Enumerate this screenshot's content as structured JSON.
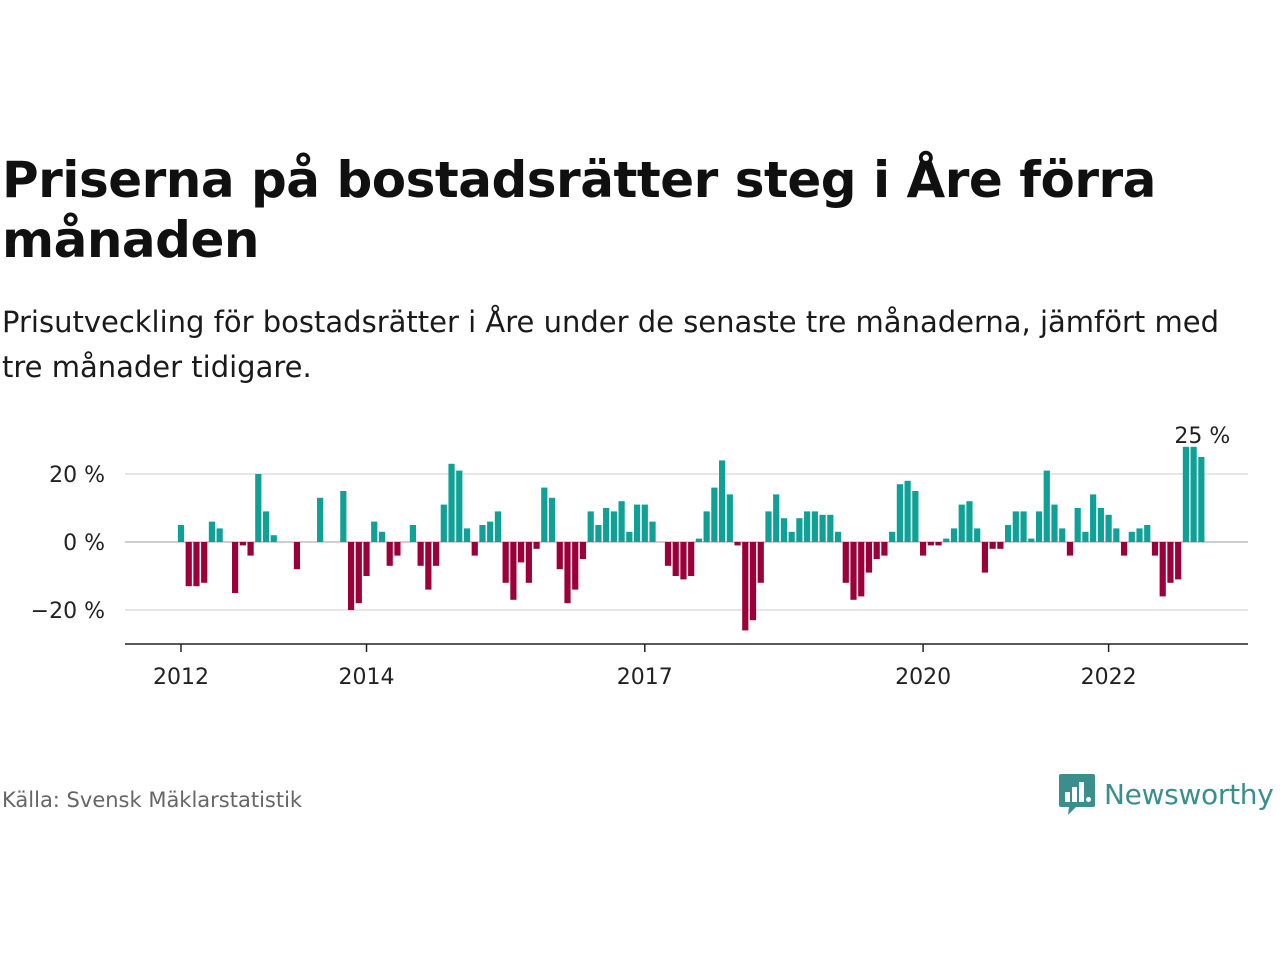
{
  "title": "Priserna på bostadsrätter steg i Åre förra månaden",
  "subtitle": "Prisutveckling för bostadsrätter i Åre under de senaste tre månaderna, jämfört med tre månader tidigare.",
  "source": "Källa: Svensk Mäklarstatistik",
  "brand": {
    "name": "Newsworthy",
    "icon": "newsworthy-logo-icon",
    "color": "#3a8f8c"
  },
  "chart_data": {
    "type": "bar",
    "x_start": "2012-01",
    "x_interval": "month",
    "x_tick_labels": [
      "2012",
      "2014",
      "2017",
      "2020",
      "2022"
    ],
    "y_tick_labels": [
      "20 %",
      "0 %",
      "−20 %"
    ],
    "y_ticks": [
      20,
      0,
      -20
    ],
    "ylim": [
      -30,
      30
    ],
    "grid": true,
    "colors": {
      "positive": "#0fa195",
      "negative": "#9b0039"
    },
    "annotation": {
      "text": "25 %"
    },
    "values": [
      5,
      -13,
      -13,
      -12,
      6,
      4,
      0,
      -15,
      -1,
      -4,
      20,
      9,
      2,
      0,
      0,
      -8,
      0,
      0,
      13,
      0,
      0,
      15,
      -20,
      -18,
      -10,
      6,
      3,
      -7,
      -4,
      0,
      5,
      -7,
      -14,
      -7,
      11,
      23,
      21,
      4,
      -4,
      5,
      6,
      9,
      -12,
      -17,
      -6,
      -12,
      -2,
      16,
      13,
      -8,
      -18,
      -14,
      -5,
      9,
      5,
      10,
      9,
      12,
      3,
      11,
      11,
      6,
      0,
      -7,
      -10,
      -11,
      -10,
      1,
      9,
      16,
      24,
      14,
      -1,
      -26,
      -23,
      -12,
      9,
      14,
      7,
      3,
      7,
      9,
      9,
      8,
      8,
      3,
      -12,
      -17,
      -16,
      -9,
      -5,
      -4,
      3,
      17,
      18,
      15,
      -4,
      -1,
      -1,
      1,
      4,
      11,
      12,
      4,
      -9,
      -2,
      -2,
      5,
      9,
      9,
      1,
      9,
      21,
      11,
      4,
      -4,
      10,
      3,
      14,
      10,
      8,
      4,
      -4,
      3,
      4,
      5,
      -4,
      -16,
      -12,
      -11,
      28,
      28,
      25
    ]
  }
}
